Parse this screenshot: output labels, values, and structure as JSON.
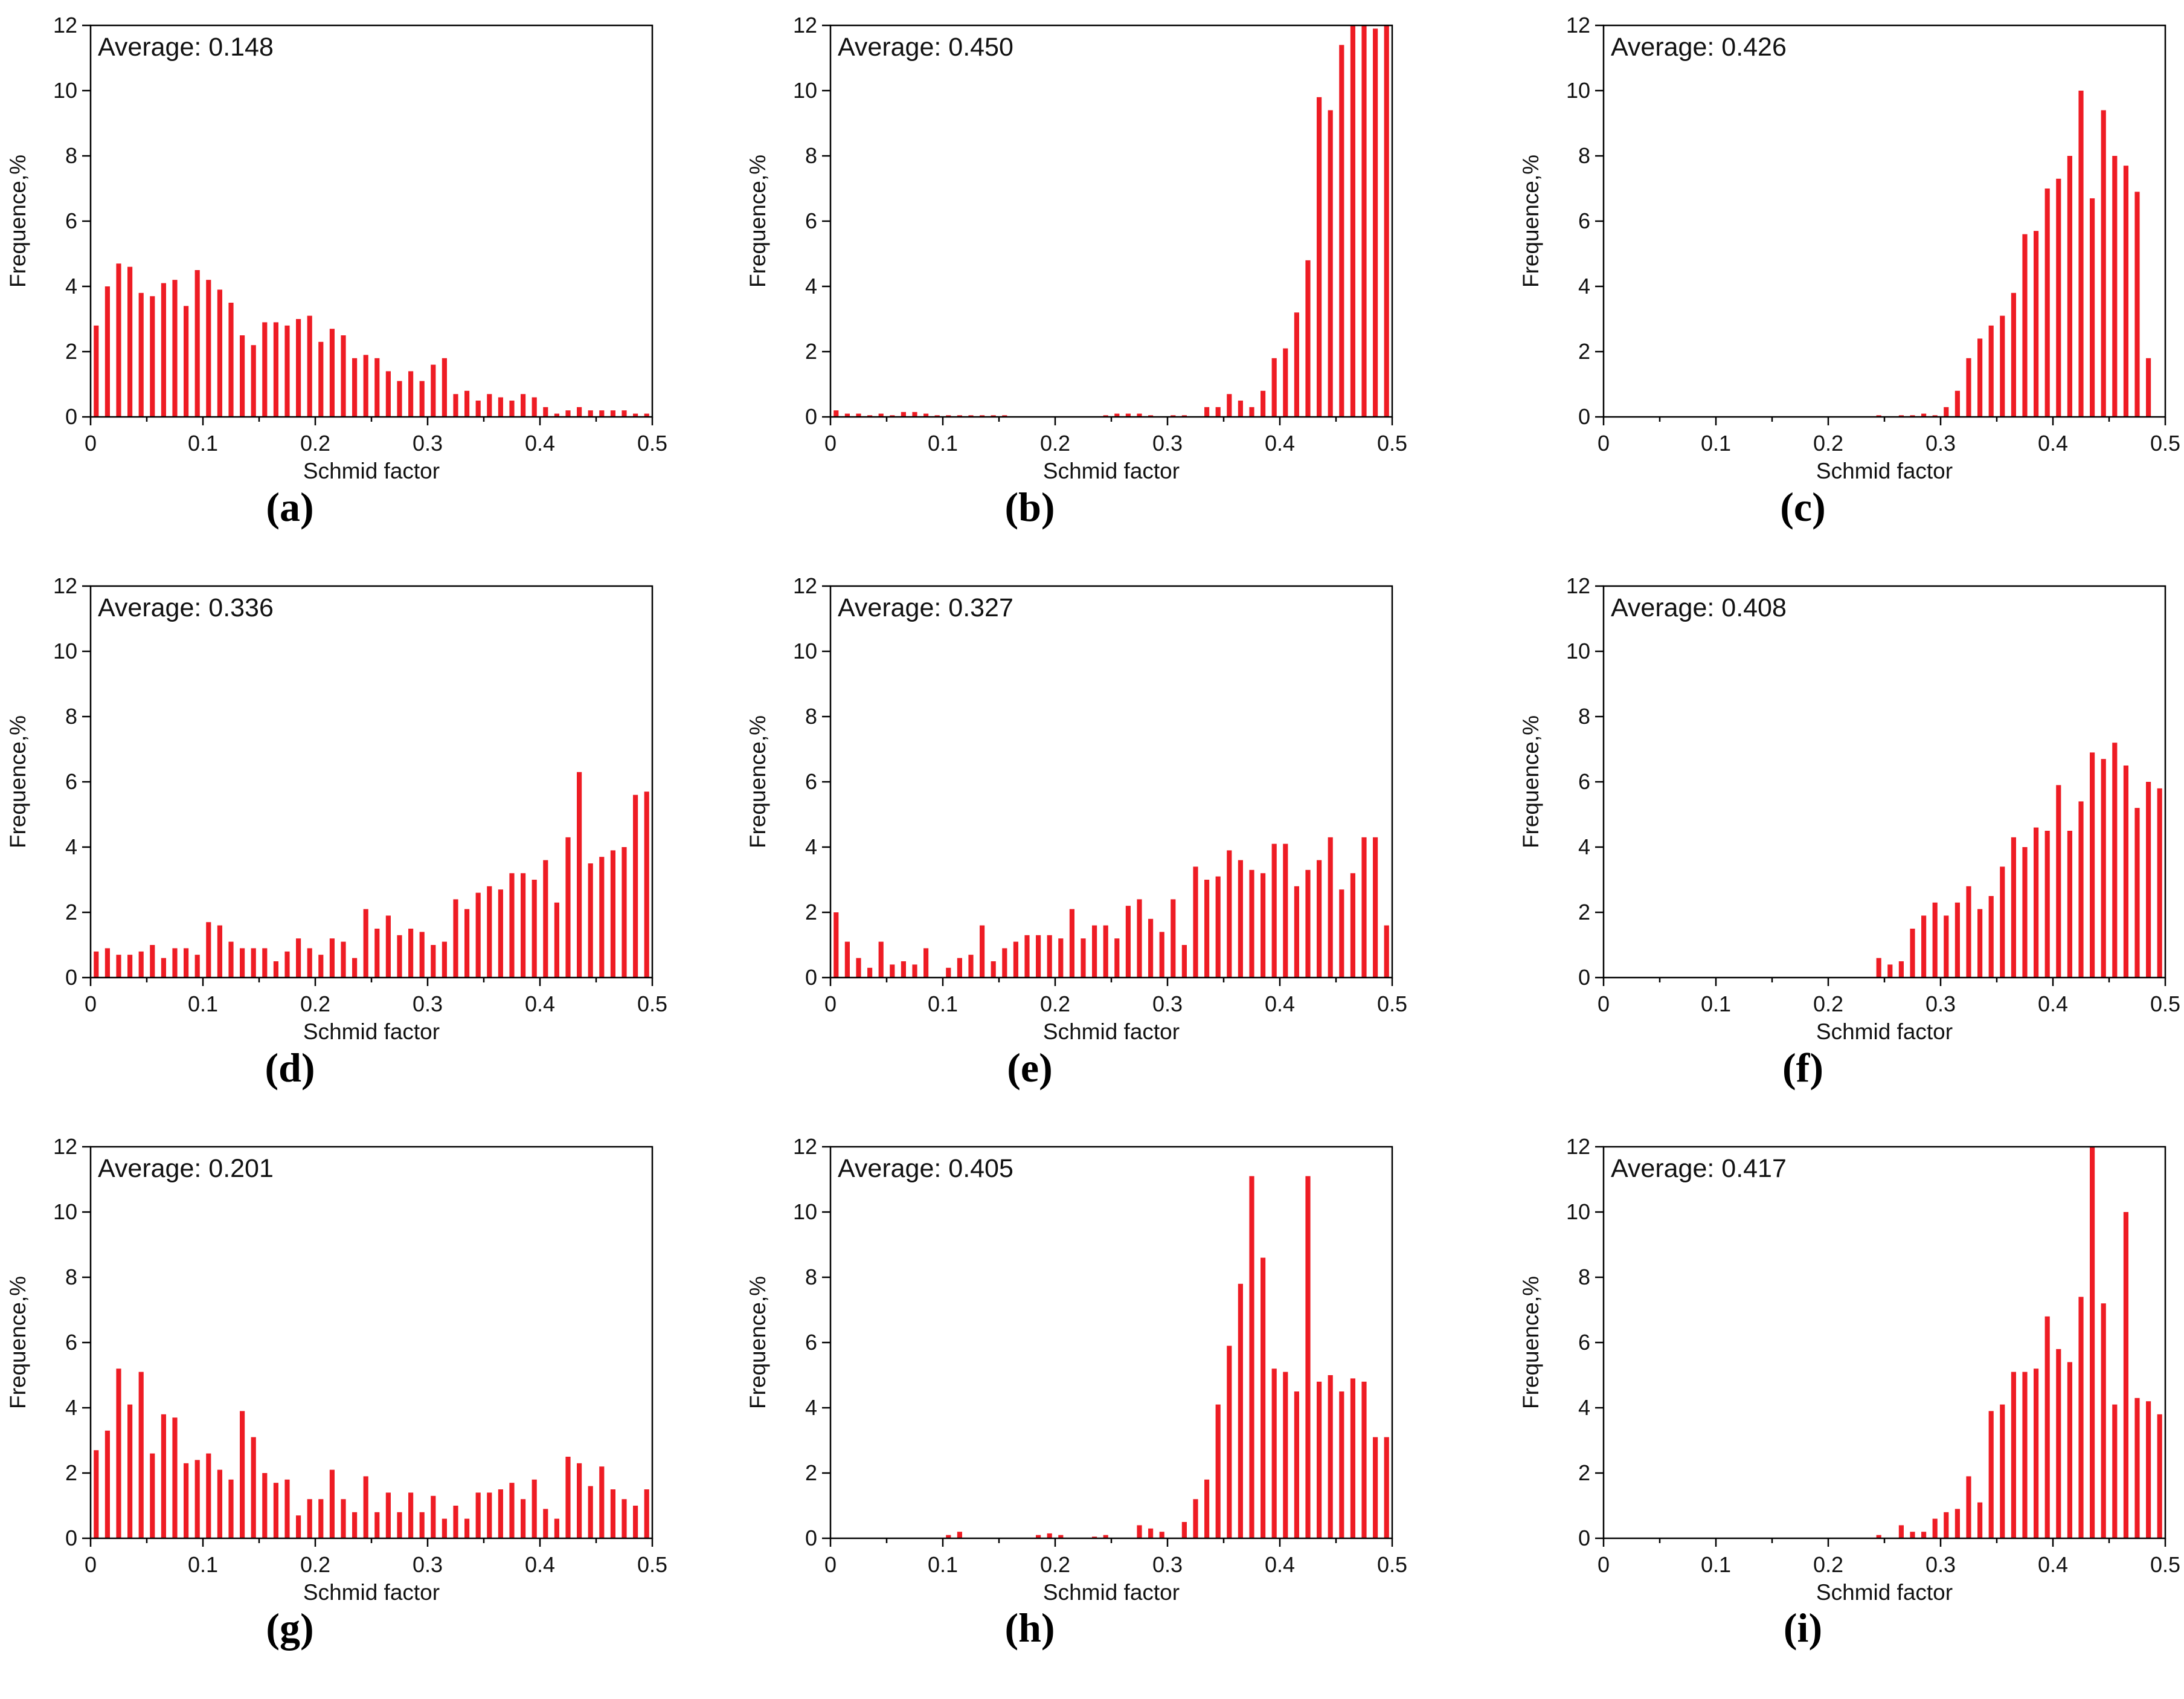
{
  "figure": {
    "bar_color": "#ee1c24",
    "axis_color": "#000000"
  },
  "chart_data": [
    {
      "panel": "(a)",
      "type": "bar",
      "annotation": "Average: 0.148",
      "xlabel": "Schmid factor",
      "ylabel": "Frequence,%",
      "xlim": [
        0,
        0.5
      ],
      "ylim": [
        0,
        12
      ],
      "xticks": [
        "0",
        "0.1",
        "0.2",
        "0.3",
        "0.4",
        "0.5"
      ],
      "yticks": [
        "0",
        "2",
        "4",
        "6",
        "8",
        "10",
        "12"
      ],
      "bin_width": 0.01,
      "values": [
        2.8,
        4.0,
        4.7,
        4.6,
        3.8,
        3.7,
        4.1,
        4.2,
        3.4,
        4.5,
        4.2,
        3.9,
        3.5,
        2.5,
        2.2,
        2.9,
        2.9,
        2.8,
        3.0,
        3.1,
        2.3,
        2.7,
        2.5,
        1.8,
        1.9,
        1.8,
        1.4,
        1.1,
        1.4,
        1.1,
        1.6,
        1.8,
        0.7,
        0.8,
        0.5,
        0.7,
        0.6,
        0.5,
        0.7,
        0.6,
        0.3,
        0.1,
        0.2,
        0.3,
        0.2,
        0.2,
        0.2,
        0.2,
        0.1,
        0.1
      ]
    },
    {
      "panel": "(b)",
      "type": "bar",
      "annotation": "Average: 0.450",
      "xlabel": "Schmid factor",
      "ylabel": "Frequence,%",
      "xlim": [
        0,
        0.5
      ],
      "ylim": [
        0,
        12
      ],
      "xticks": [
        "0",
        "0.1",
        "0.2",
        "0.3",
        "0.4",
        "0.5"
      ],
      "yticks": [
        "0",
        "2",
        "4",
        "6",
        "8",
        "10",
        "12"
      ],
      "bin_width": 0.01,
      "values": [
        0.2,
        0.1,
        0.1,
        0.05,
        0.1,
        0.05,
        0.15,
        0.15,
        0.1,
        0.05,
        0.05,
        0.05,
        0.05,
        0.05,
        0.05,
        0.05,
        0,
        0,
        0,
        0,
        0,
        0,
        0,
        0,
        0.05,
        0.1,
        0.1,
        0.1,
        0.05,
        0,
        0.05,
        0.05,
        0,
        0.3,
        0.3,
        0.7,
        0.5,
        0.3,
        0.8,
        1.8,
        2.1,
        3.2,
        4.8,
        9.8,
        9.4,
        11.4,
        12.0,
        12.0,
        11.9,
        12.0
      ]
    },
    {
      "panel": "(c)",
      "type": "bar",
      "annotation": "Average: 0.426",
      "xlabel": "Schmid factor",
      "ylabel": "Frequence,%",
      "xlim": [
        0,
        0.5
      ],
      "ylim": [
        0,
        12
      ],
      "xticks": [
        "0",
        "0.1",
        "0.2",
        "0.3",
        "0.4",
        "0.5"
      ],
      "yticks": [
        "0",
        "2",
        "4",
        "6",
        "8",
        "10",
        "12"
      ],
      "bin_width": 0.01,
      "values": [
        0,
        0,
        0,
        0,
        0,
        0,
        0,
        0,
        0,
        0,
        0,
        0,
        0,
        0,
        0,
        0,
        0,
        0,
        0,
        0,
        0,
        0,
        0,
        0,
        0.05,
        0,
        0.05,
        0.05,
        0.1,
        0.05,
        0.3,
        0.8,
        1.8,
        2.4,
        2.8,
        3.1,
        3.8,
        5.6,
        5.7,
        7.0,
        7.3,
        8.0,
        10.0,
        6.7,
        9.4,
        8.0,
        7.7,
        6.9,
        1.8,
        0
      ]
    },
    {
      "panel": "(d)",
      "type": "bar",
      "annotation": "Average: 0.336",
      "xlabel": "Schmid factor",
      "ylabel": "Frequence,%",
      "xlim": [
        0,
        0.5
      ],
      "ylim": [
        0,
        12
      ],
      "xticks": [
        "0",
        "0.1",
        "0.2",
        "0.3",
        "0.4",
        "0.5"
      ],
      "yticks": [
        "0",
        "2",
        "4",
        "6",
        "8",
        "10",
        "12"
      ],
      "bin_width": 0.01,
      "values": [
        0.8,
        0.9,
        0.7,
        0.7,
        0.8,
        1.0,
        0.6,
        0.9,
        0.9,
        0.7,
        1.7,
        1.6,
        1.1,
        0.9,
        0.9,
        0.9,
        0.5,
        0.8,
        1.2,
        0.9,
        0.7,
        1.2,
        1.1,
        0.6,
        2.1,
        1.5,
        1.9,
        1.3,
        1.5,
        1.4,
        1.0,
        1.1,
        2.4,
        2.1,
        2.6,
        2.8,
        2.7,
        3.2,
        3.2,
        3.0,
        3.6,
        2.3,
        4.3,
        6.3,
        3.5,
        3.7,
        3.9,
        4.0,
        5.6,
        5.7
      ]
    },
    {
      "panel": "(e)",
      "type": "bar",
      "annotation": "Average: 0.327",
      "xlabel": "Schmid factor",
      "ylabel": "Frequence,%",
      "xlim": [
        0,
        0.5
      ],
      "ylim": [
        0,
        12
      ],
      "xticks": [
        "0",
        "0.1",
        "0.2",
        "0.3",
        "0.4",
        "0.5"
      ],
      "yticks": [
        "0",
        "2",
        "4",
        "6",
        "8",
        "10",
        "12"
      ],
      "bin_width": 0.01,
      "values": [
        2.0,
        1.1,
        0.6,
        0.3,
        1.1,
        0.4,
        0.5,
        0.4,
        0.9,
        0,
        0.3,
        0.6,
        0.7,
        1.6,
        0.5,
        0.9,
        1.1,
        1.3,
        1.3,
        1.3,
        1.2,
        2.1,
        1.2,
        1.6,
        1.6,
        1.2,
        2.2,
        2.4,
        1.8,
        1.4,
        2.4,
        1.0,
        3.4,
        3.0,
        3.1,
        3.9,
        3.6,
        3.3,
        3.2,
        4.1,
        4.1,
        2.8,
        3.3,
        3.6,
        4.3,
        2.7,
        3.2,
        4.3,
        4.3,
        1.6
      ]
    },
    {
      "panel": "(f)",
      "type": "bar",
      "annotation": "Average: 0.408",
      "xlabel": "Schmid factor",
      "ylabel": "Frequence,%",
      "xlim": [
        0,
        0.5
      ],
      "ylim": [
        0,
        12
      ],
      "xticks": [
        "0",
        "0.1",
        "0.2",
        "0.3",
        "0.4",
        "0.5"
      ],
      "yticks": [
        "0",
        "2",
        "4",
        "6",
        "8",
        "10",
        "12"
      ],
      "bin_width": 0.01,
      "values": [
        0,
        0,
        0,
        0,
        0,
        0,
        0,
        0,
        0,
        0,
        0,
        0,
        0,
        0,
        0,
        0,
        0,
        0,
        0,
        0,
        0,
        0,
        0,
        0,
        0.6,
        0.4,
        0.5,
        1.5,
        1.9,
        2.3,
        1.9,
        2.3,
        2.8,
        2.1,
        2.5,
        3.4,
        4.3,
        4.0,
        4.6,
        4.5,
        5.9,
        4.5,
        5.4,
        6.9,
        6.7,
        7.2,
        6.5,
        5.2,
        6.0,
        5.8
      ]
    },
    {
      "panel": "(g)",
      "type": "bar",
      "annotation": "Average: 0.201",
      "xlabel": "Schmid factor",
      "ylabel": "Frequence,%",
      "xlim": [
        0,
        0.5
      ],
      "ylim": [
        0,
        12
      ],
      "xticks": [
        "0",
        "0.1",
        "0.2",
        "0.3",
        "0.4",
        "0.5"
      ],
      "yticks": [
        "0",
        "2",
        "4",
        "6",
        "8",
        "10",
        "12"
      ],
      "bin_width": 0.01,
      "values": [
        2.7,
        3.3,
        5.2,
        4.1,
        5.1,
        2.6,
        3.8,
        3.7,
        2.3,
        2.4,
        2.6,
        2.1,
        1.8,
        3.9,
        3.1,
        2.0,
        1.7,
        1.8,
        0.7,
        1.2,
        1.2,
        2.1,
        1.2,
        0.8,
        1.9,
        0.8,
        1.4,
        0.8,
        1.4,
        0.8,
        1.3,
        0.6,
        1.0,
        0.6,
        1.4,
        1.4,
        1.5,
        1.7,
        1.2,
        1.8,
        0.9,
        0.6,
        2.5,
        2.3,
        1.6,
        2.2,
        1.5,
        1.2,
        1.0,
        1.5
      ]
    },
    {
      "panel": "(h)",
      "type": "bar",
      "annotation": "Average: 0.405",
      "xlabel": "Schmid factor",
      "ylabel": "Frequence,%",
      "xlim": [
        0,
        0.5
      ],
      "ylim": [
        0,
        12
      ],
      "xticks": [
        "0",
        "0.1",
        "0.2",
        "0.3",
        "0.4",
        "0.5"
      ],
      "yticks": [
        "0",
        "2",
        "4",
        "6",
        "8",
        "10",
        "12"
      ],
      "bin_width": 0.01,
      "values": [
        0,
        0,
        0,
        0,
        0,
        0,
        0,
        0,
        0,
        0,
        0.1,
        0.2,
        0,
        0,
        0,
        0,
        0,
        0,
        0.1,
        0.15,
        0.1,
        0,
        0,
        0.05,
        0.1,
        0,
        0,
        0.4,
        0.3,
        0.2,
        0,
        0.5,
        1.2,
        1.8,
        4.1,
        5.9,
        7.8,
        11.1,
        8.6,
        5.2,
        5.1,
        4.5,
        11.1,
        4.8,
        5.0,
        4.5,
        4.9,
        4.8,
        3.1,
        3.1
      ]
    },
    {
      "panel": "(i)",
      "type": "bar",
      "annotation": "Average: 0.417",
      "xlabel": "Schmid factor",
      "ylabel": "Frequence,%",
      "xlim": [
        0,
        0.5
      ],
      "ylim": [
        0,
        12
      ],
      "xticks": [
        "0",
        "0.1",
        "0.2",
        "0.3",
        "0.4",
        "0.5"
      ],
      "yticks": [
        "0",
        "2",
        "4",
        "6",
        "8",
        "10",
        "12"
      ],
      "bin_width": 0.01,
      "values": [
        0,
        0,
        0,
        0,
        0,
        0,
        0,
        0,
        0,
        0,
        0,
        0,
        0,
        0,
        0,
        0,
        0,
        0,
        0,
        0,
        0,
        0,
        0,
        0,
        0.1,
        0,
        0.4,
        0.2,
        0.2,
        0.6,
        0.8,
        0.9,
        1.9,
        1.1,
        3.9,
        4.1,
        5.1,
        5.1,
        5.2,
        6.8,
        5.8,
        5.4,
        7.4,
        12.0,
        7.2,
        4.1,
        10.0,
        4.3,
        4.2,
        3.8
      ]
    }
  ]
}
